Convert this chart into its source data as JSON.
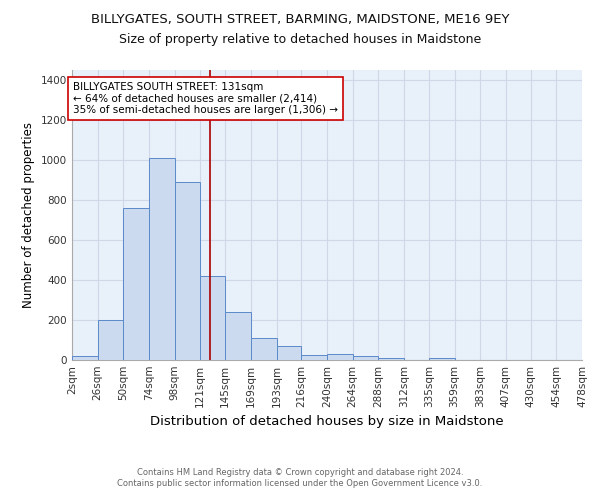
{
  "title": "BILLYGATES, SOUTH STREET, BARMING, MAIDSTONE, ME16 9EY",
  "subtitle": "Size of property relative to detached houses in Maidstone",
  "xlabel": "Distribution of detached houses by size in Maidstone",
  "ylabel": "Number of detached properties",
  "bin_edges": [
    2,
    26,
    50,
    74,
    98,
    121,
    145,
    169,
    193,
    216,
    240,
    264,
    288,
    312,
    335,
    359,
    383,
    407,
    430,
    454,
    478
  ],
  "bar_heights": [
    20,
    200,
    760,
    1010,
    890,
    420,
    240,
    110,
    70,
    25,
    30,
    18,
    10,
    0,
    10,
    0,
    0,
    0,
    0,
    0
  ],
  "bar_facecolor": "#ccdaf0",
  "bar_edgecolor": "#5b8ac9",
  "background_color": "#e8f0fa",
  "grid_color": "#d0d8e8",
  "vline_x": 131,
  "vline_color": "#aa0000",
  "annotation_text": "BILLYGATES SOUTH STREET: 131sqm\n← 64% of detached houses are smaller (2,414)\n35% of semi-detached houses are larger (1,306) →",
  "annotation_box_edgecolor": "#cc0000",
  "annotation_box_facecolor": "#ffffff",
  "ylim": [
    0,
    1450
  ],
  "yticks": [
    0,
    200,
    400,
    600,
    800,
    1000,
    1200,
    1400
  ],
  "footer_line1": "Contains HM Land Registry data © Crown copyright and database right 2024.",
  "footer_line2": "Contains public sector information licensed under the Open Government Licence v3.0.",
  "title_fontsize": 9.5,
  "subtitle_fontsize": 9,
  "xlabel_fontsize": 9.5,
  "ylabel_fontsize": 8.5,
  "annotation_fontsize": 7.5,
  "tick_fontsize": 7.5
}
